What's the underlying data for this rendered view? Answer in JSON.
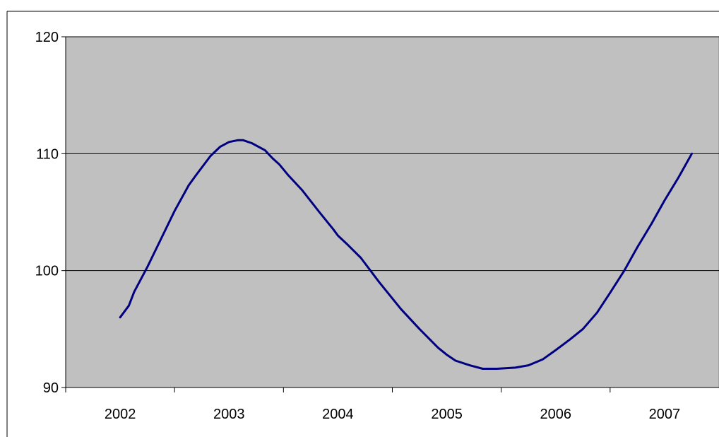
{
  "chart_data": {
    "type": "line",
    "title": "",
    "xlabel": "",
    "ylabel": "",
    "categories": [
      "2002",
      "2003",
      "2004",
      "2005",
      "2006",
      "2007"
    ],
    "x_range": [
      2001.5,
      2007.5
    ],
    "ylim": [
      90,
      120
    ],
    "y_ticks": [
      90,
      100,
      110,
      120
    ],
    "grid": true,
    "legend": "none",
    "plot_background": "#c0c0c0",
    "series": [
      {
        "color": "#000080",
        "points": [
          [
            2002.0,
            96.0
          ],
          [
            2002.08,
            97.0
          ],
          [
            2002.13,
            98.2
          ],
          [
            2002.25,
            100.3
          ],
          [
            2002.38,
            102.8
          ],
          [
            2002.5,
            105.1
          ],
          [
            2002.63,
            107.3
          ],
          [
            2002.7,
            108.2
          ],
          [
            2002.83,
            109.8
          ],
          [
            2002.92,
            110.6
          ],
          [
            2003.0,
            111.0
          ],
          [
            2003.08,
            111.15
          ],
          [
            2003.13,
            111.15
          ],
          [
            2003.21,
            110.9
          ],
          [
            2003.33,
            110.3
          ],
          [
            2003.4,
            109.6
          ],
          [
            2003.46,
            109.1
          ],
          [
            2003.54,
            108.2
          ],
          [
            2003.67,
            106.9
          ],
          [
            2003.83,
            105.0
          ],
          [
            2003.96,
            103.5
          ],
          [
            2004.0,
            103.0
          ],
          [
            2004.08,
            102.3
          ],
          [
            2004.21,
            101.1
          ],
          [
            2004.38,
            99.0
          ],
          [
            2004.58,
            96.7
          ],
          [
            2004.75,
            95.0
          ],
          [
            2004.92,
            93.4
          ],
          [
            2005.0,
            92.8
          ],
          [
            2005.08,
            92.3
          ],
          [
            2005.21,
            91.9
          ],
          [
            2005.33,
            91.6
          ],
          [
            2005.46,
            91.6
          ],
          [
            2005.63,
            91.7
          ],
          [
            2005.75,
            91.9
          ],
          [
            2005.88,
            92.4
          ],
          [
            2006.0,
            93.2
          ],
          [
            2006.13,
            94.1
          ],
          [
            2006.25,
            95.0
          ],
          [
            2006.38,
            96.4
          ],
          [
            2006.5,
            98.1
          ],
          [
            2006.63,
            100.0
          ],
          [
            2006.75,
            102.0
          ],
          [
            2006.88,
            104.0
          ],
          [
            2007.0,
            106.0
          ],
          [
            2007.13,
            108.0
          ],
          [
            2007.25,
            110.0
          ]
        ]
      }
    ]
  }
}
